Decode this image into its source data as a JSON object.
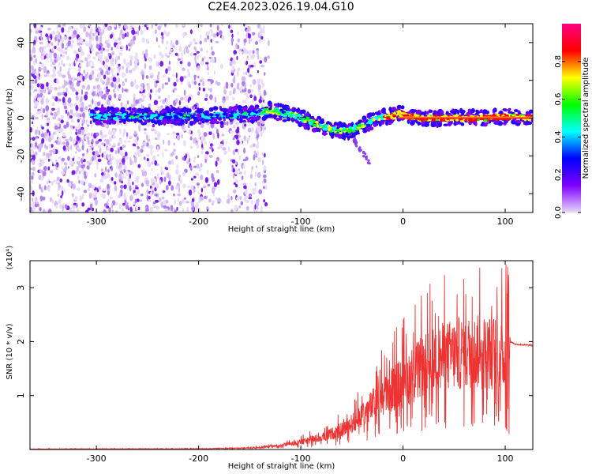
{
  "title": "C2E4.2023.026.19.04.G10",
  "chart_data": [
    {
      "type": "heatmap",
      "xlabel": "Height of straight line (km)",
      "ylabel": "Frequency (Hz)",
      "xlim": [
        -365,
        127
      ],
      "ylim": [
        -50,
        50
      ],
      "xticks": [
        -300,
        -200,
        -100,
        0,
        100
      ],
      "yticks": [
        -40,
        -20,
        0,
        20,
        40
      ],
      "grid": false,
      "colorbar": {
        "label": "Normalized spectral amplitude",
        "range": [
          0,
          1
        ],
        "ticks": [
          "0.0",
          "0.2",
          "0.4",
          "0.6",
          "0.8"
        ],
        "colors": [
          "#e8d8f8",
          "#8000ff",
          "#0000ff",
          "#00ffff",
          "#00ff00",
          "#ffff00",
          "#ff0000",
          "#ff0080"
        ]
      },
      "ridge": {
        "x": [
          -300,
          -250,
          -200,
          -150,
          -130,
          -110,
          -90,
          -70,
          -55,
          -45,
          -35,
          -25,
          -10,
          -5,
          0,
          5,
          20,
          50,
          80,
          100,
          127
        ],
        "freq": [
          1,
          1,
          1,
          2,
          4,
          2,
          -2,
          -6,
          -7,
          -5,
          -3,
          0,
          1,
          3,
          2,
          1,
          0,
          0,
          0,
          1,
          0
        ]
      }
    },
    {
      "type": "line",
      "xlabel": "Height of straight line (km)",
      "ylabel": "SNR (10 * v/v)",
      "yscale_label": "(x10⁴)",
      "xlim": [
        -365,
        127
      ],
      "ylim": [
        0,
        3.5
      ],
      "xticks": [
        -300,
        -200,
        -100,
        0,
        100
      ],
      "yticks": [
        1,
        2,
        3
      ],
      "series": [
        {
          "color": "#ee3333",
          "envelope": {
            "x": [
              -365,
              -200,
              -150,
              -120,
              -100,
              -80,
              -60,
              -45,
              -30,
              -20,
              0,
              20,
              40,
              60,
              80,
              90,
              100,
              105,
              110,
              127
            ],
            "y": [
              0.01,
              0.015,
              0.03,
              0.08,
              0.15,
              0.25,
              0.4,
              0.6,
              0.9,
              1.1,
              1.4,
              1.7,
              1.9,
              2.0,
              2.0,
              2.0,
              1.9,
              2.0,
              1.95,
              1.93
            ]
          }
        }
      ]
    }
  ]
}
